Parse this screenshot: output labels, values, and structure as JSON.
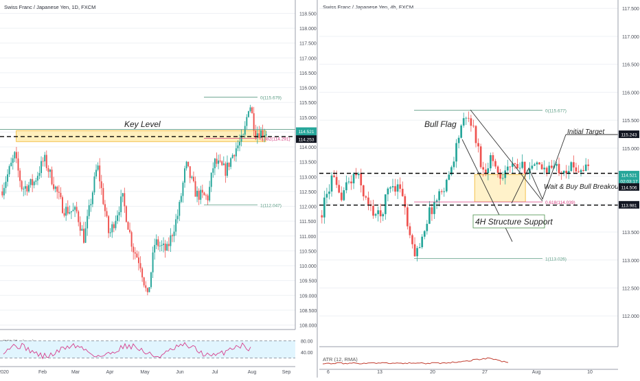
{
  "colors": {
    "up": "#26a69a",
    "down": "#ef5350",
    "grid": "#eef0f4",
    "border": "#9a9ea8",
    "axis_text": "#4a4e58",
    "fib": "#5b9c84",
    "fib_pink": "#d4397d",
    "key_zone": "#ffe9a6",
    "rsi": "#d63c8a",
    "rsi_band": "#e1f5fe",
    "atr": "#c0392b",
    "label_bg": "#131722",
    "price_box": "#26a69a"
  },
  "chart_data": [
    {
      "type": "candlestick",
      "title": "Swiss Franc / Japanese Yen, 1D, FXCM",
      "y_axis": {
        "ylim": [
          107.85,
          118.95
        ],
        "ticks": [
          "118.500",
          "118.000",
          "117.500",
          "117.000",
          "116.500",
          "116.000",
          "115.500",
          "115.000",
          "114.500",
          "114.000",
          "113.500",
          "113.000",
          "112.500",
          "112.000",
          "111.500",
          "111.000",
          "110.500",
          "110.000",
          "109.500",
          "109.000",
          "108.500",
          "108.000"
        ]
      },
      "x_axis": {
        "ticks": [
          "2020",
          "Feb",
          "Mar",
          "Apr",
          "May",
          "Jun",
          "Jul",
          "Aug",
          "Sep"
        ]
      },
      "price_path": [
        {
          "x": 0.0,
          "close": 112.5
        },
        {
          "x": 0.045,
          "close": 113.7
        },
        {
          "x": 0.07,
          "close": 112.6
        },
        {
          "x": 0.11,
          "close": 112.8
        },
        {
          "x": 0.145,
          "close": 113.6
        },
        {
          "x": 0.21,
          "close": 111.9
        },
        {
          "x": 0.255,
          "close": 111.8
        },
        {
          "x": 0.28,
          "close": 110.9
        },
        {
          "x": 0.325,
          "close": 113.4
        },
        {
          "x": 0.365,
          "close": 111.0
        },
        {
          "x": 0.41,
          "close": 112.3
        },
        {
          "x": 0.445,
          "close": 110.6
        },
        {
          "x": 0.47,
          "close": 110.1
        },
        {
          "x": 0.495,
          "close": 108.9
        },
        {
          "x": 0.52,
          "close": 110.8
        },
        {
          "x": 0.56,
          "close": 110.5
        },
        {
          "x": 0.6,
          "close": 111.8
        },
        {
          "x": 0.625,
          "close": 113.4
        },
        {
          "x": 0.66,
          "close": 112.4
        },
        {
          "x": 0.7,
          "close": 112.3
        },
        {
          "x": 0.72,
          "close": 113.5
        },
        {
          "x": 0.76,
          "close": 113.2
        },
        {
          "x": 0.79,
          "close": 113.9
        },
        {
          "x": 0.82,
          "close": 114.3
        },
        {
          "x": 0.84,
          "close": 115.55
        },
        {
          "x": 0.86,
          "close": 114.5
        }
      ],
      "horizontal_lines": [
        {
          "price": 114.59,
          "style": "solid",
          "color": "#5b9c84"
        },
        {
          "price": 114.35,
          "style": "dashed",
          "color": "#000000"
        }
      ],
      "zone": {
        "price_top": 114.55,
        "price_bottom": 114.18,
        "x_start": 0.055,
        "x_end": 0.9,
        "label": "Key Level"
      },
      "fibonacci": [
        {
          "level": "0(115.679)",
          "price": 115.679
        },
        {
          "level": "0.382(114.291)",
          "price": 114.291
        },
        {
          "level": "1(112.047)",
          "price": 112.047
        }
      ],
      "price_labels": [
        {
          "text": "114.521",
          "price": 114.521,
          "box": "teal"
        },
        {
          "text": "14:03:17",
          "price": 114.3,
          "box": "teal"
        },
        {
          "text": "114.253",
          "price": 114.253,
          "box": "black"
        }
      ],
      "indicator": {
        "name": "RSI (7, close)",
        "ticks": [
          "80.00",
          "40.00"
        ],
        "levels": [
          80,
          20
        ]
      }
    },
    {
      "type": "candlestick",
      "title": "Swiss Franc / Japanese Yen, 4h, FXCM",
      "y_axis": {
        "ylim": [
          111.45,
          117.65
        ],
        "ticks": [
          "117.500",
          "117.000",
          "116.500",
          "116.000",
          "115.500",
          "115.000",
          "114.500",
          "114.000",
          "113.500",
          "113.000",
          "112.500",
          "112.000"
        ]
      },
      "x_axis": {
        "ticks": [
          "6",
          "13",
          "20",
          "27",
          "Aug",
          "10"
        ]
      },
      "price_path": [
        {
          "x": 0.0,
          "close": 113.8
        },
        {
          "x": 0.04,
          "close": 114.5
        },
        {
          "x": 0.06,
          "close": 114.1
        },
        {
          "x": 0.09,
          "close": 114.35
        },
        {
          "x": 0.12,
          "close": 114.55
        },
        {
          "x": 0.16,
          "close": 113.95
        },
        {
          "x": 0.2,
          "close": 113.75
        },
        {
          "x": 0.23,
          "close": 114.35
        },
        {
          "x": 0.27,
          "close": 114.3
        },
        {
          "x": 0.3,
          "close": 113.3
        },
        {
          "x": 0.32,
          "close": 113.1
        },
        {
          "x": 0.36,
          "close": 113.8
        },
        {
          "x": 0.4,
          "close": 114.2
        },
        {
          "x": 0.43,
          "close": 114.5
        },
        {
          "x": 0.47,
          "close": 115.4
        },
        {
          "x": 0.5,
          "close": 115.55
        },
        {
          "x": 0.52,
          "close": 115.15
        },
        {
          "x": 0.545,
          "close": 114.55
        },
        {
          "x": 0.57,
          "close": 114.85
        },
        {
          "x": 0.6,
          "close": 114.5
        },
        {
          "x": 0.62,
          "close": 114.65
        }
      ],
      "horizontal_lines": [
        {
          "price": 114.55,
          "style": "dashed",
          "color": "#000000"
        },
        {
          "price": 113.981,
          "style": "dashed",
          "color": "#000000"
        }
      ],
      "zone": {
        "price_top": 114.53,
        "price_bottom": 114.04,
        "x_start": 0.52,
        "x_end": 0.69,
        "label": "Wait & Buy Bull Breakout"
      },
      "fibonacci": [
        {
          "level": "0(115.677)",
          "price": 115.677
        },
        {
          "level": "0.618(114.039)",
          "price": 114.039
        },
        {
          "level": "1(113.026)",
          "price": 113.026
        }
      ],
      "annotations": [
        "Bull Flag",
        "Initial Target",
        "Wait & Buy Bull Breakout",
        "4H Structure Support"
      ],
      "price_labels": [
        {
          "text": "115.243",
          "price": 115.243,
          "box": "black"
        },
        {
          "text": "114.521",
          "price": 114.521,
          "box": "teal"
        },
        {
          "text": "02:03:17",
          "price": 114.41,
          "box": "teal"
        },
        {
          "text": "114.506",
          "price": 114.3,
          "box": "black"
        },
        {
          "text": "113.981",
          "price": 113.981,
          "box": "black"
        }
      ],
      "indicator": {
        "name": "ATR (12, RMA)"
      }
    }
  ]
}
